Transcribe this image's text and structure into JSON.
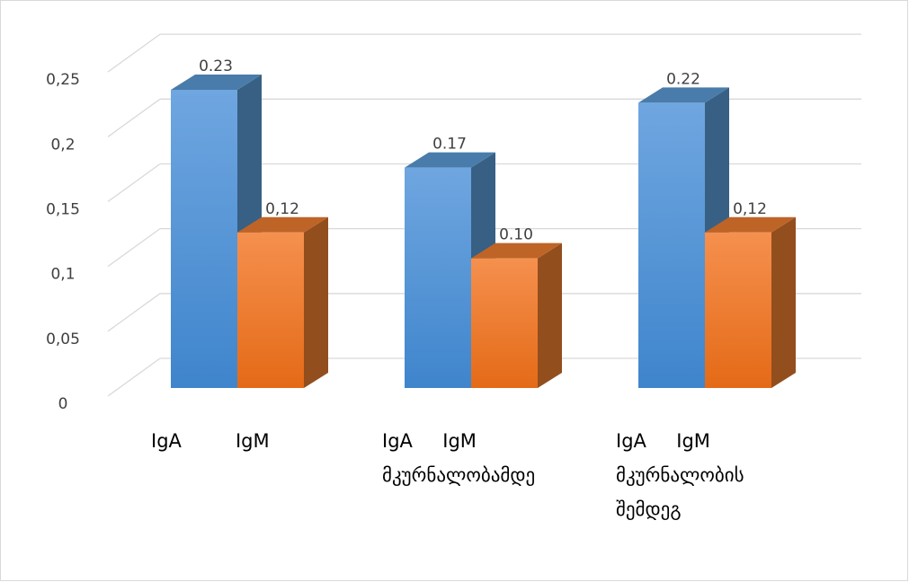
{
  "chart_data": {
    "type": "bar3d",
    "categories": [
      "IgA         IgM",
      "IgA     IgM\nმკურნალობამდე",
      "IgA     IgM\nმკურნალობის\nშემდეგ"
    ],
    "series": [
      {
        "color": "#5b9bd5",
        "values": [
          0.23,
          0.17,
          0.22
        ],
        "value_labels": [
          "0.23",
          "0.17",
          "0.22"
        ]
      },
      {
        "color": "#ed7d31",
        "values": [
          0.12,
          0.1,
          0.12
        ],
        "value_labels": [
          "0,12",
          "0.10",
          "0,12"
        ]
      }
    ],
    "ylim": [
      0,
      0.25
    ],
    "yticks": [
      0,
      {
        "value": 0.05,
        "label": "0,05"
      },
      {
        "value": 0.1,
        "label": "0,1"
      },
      {
        "value": 0.15,
        "label": "0,15"
      },
      {
        "value": 0.2,
        "label": "0,2"
      },
      {
        "value": 0.25,
        "label": "0,25"
      }
    ],
    "grid": true
  }
}
